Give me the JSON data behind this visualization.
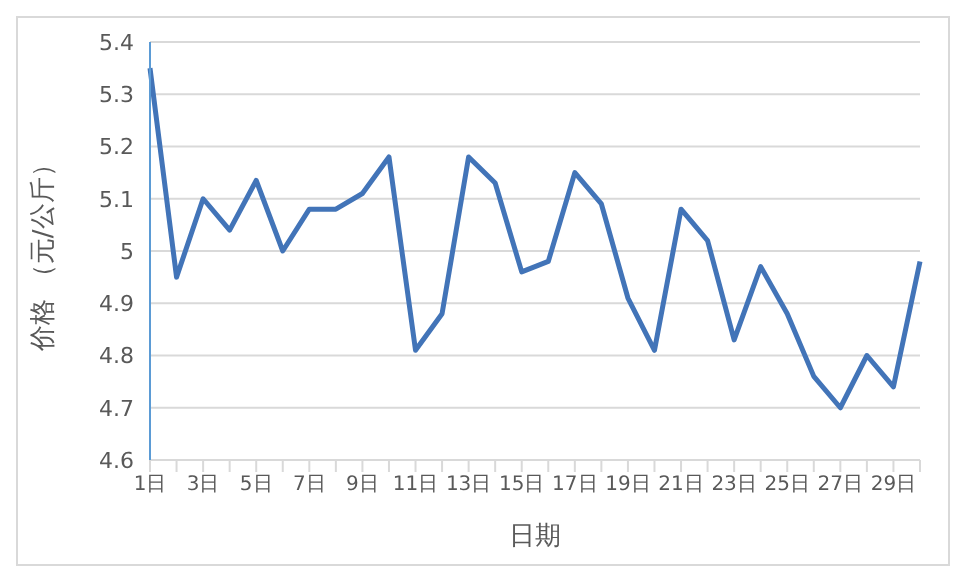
{
  "chart_data": {
    "type": "line",
    "xlabel": "日期",
    "ylabel": "价格 （元/公斤）",
    "categories": [
      "1日",
      null,
      "3日",
      null,
      "5日",
      null,
      "7日",
      null,
      "9日",
      null,
      "11日",
      null,
      "13日",
      null,
      "15日",
      null,
      "17日",
      null,
      "19日",
      null,
      "21日",
      null,
      "23日",
      null,
      "25日",
      null,
      "27日",
      null,
      "29日",
      null
    ],
    "series": [
      {
        "color": "#4274b8",
        "values": [
          5.35,
          4.95,
          5.1,
          5.04,
          5.135,
          5.0,
          5.08,
          5.08,
          5.11,
          5.18,
          4.81,
          4.88,
          5.18,
          5.13,
          4.96,
          4.98,
          5.15,
          5.09,
          4.91,
          4.81,
          5.08,
          5.02,
          4.83,
          4.97,
          4.88,
          4.76,
          4.7,
          4.8,
          4.74,
          4.98
        ]
      }
    ],
    "ylim": [
      4.6,
      5.4
    ],
    "yticks": [
      4.6,
      4.7,
      4.8,
      4.9,
      5,
      5.1,
      5.2,
      5.3,
      5.4
    ],
    "grid": "y",
    "marker": "none",
    "line_style": "solid"
  }
}
